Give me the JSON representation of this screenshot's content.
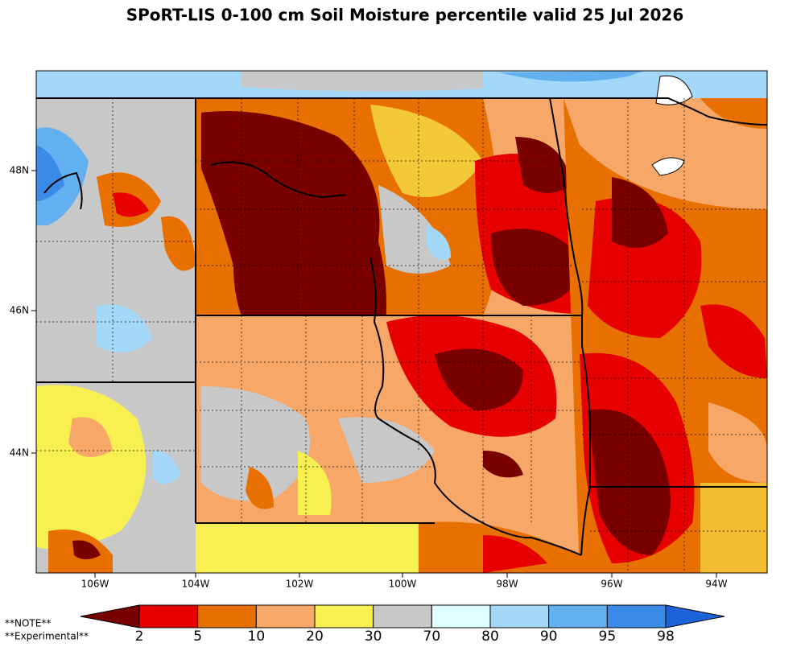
{
  "title": "SPoRT-LIS 0-100 cm Soil Moisture percentile valid 25 Jul 2026",
  "map": {
    "lat_labels": [
      "48N",
      "46N",
      "44N"
    ],
    "lon_labels": [
      "106W",
      "104W",
      "102W",
      "100W",
      "98W",
      "96W",
      "94W"
    ]
  },
  "colorbar": {
    "colors": [
      "#7a0000",
      "#e60000",
      "#e87000",
      "#f7a868",
      "#f8f050",
      "#c8c8c8",
      "#e0ffff",
      "#a4d8f8",
      "#62b0f0",
      "#3a8ae8",
      "#1e64d8"
    ],
    "ticks": [
      2,
      5,
      10,
      20,
      30,
      70,
      80,
      90,
      95,
      98
    ]
  },
  "notes": [
    "**NOTE**",
    "**Experimental**"
  ]
}
